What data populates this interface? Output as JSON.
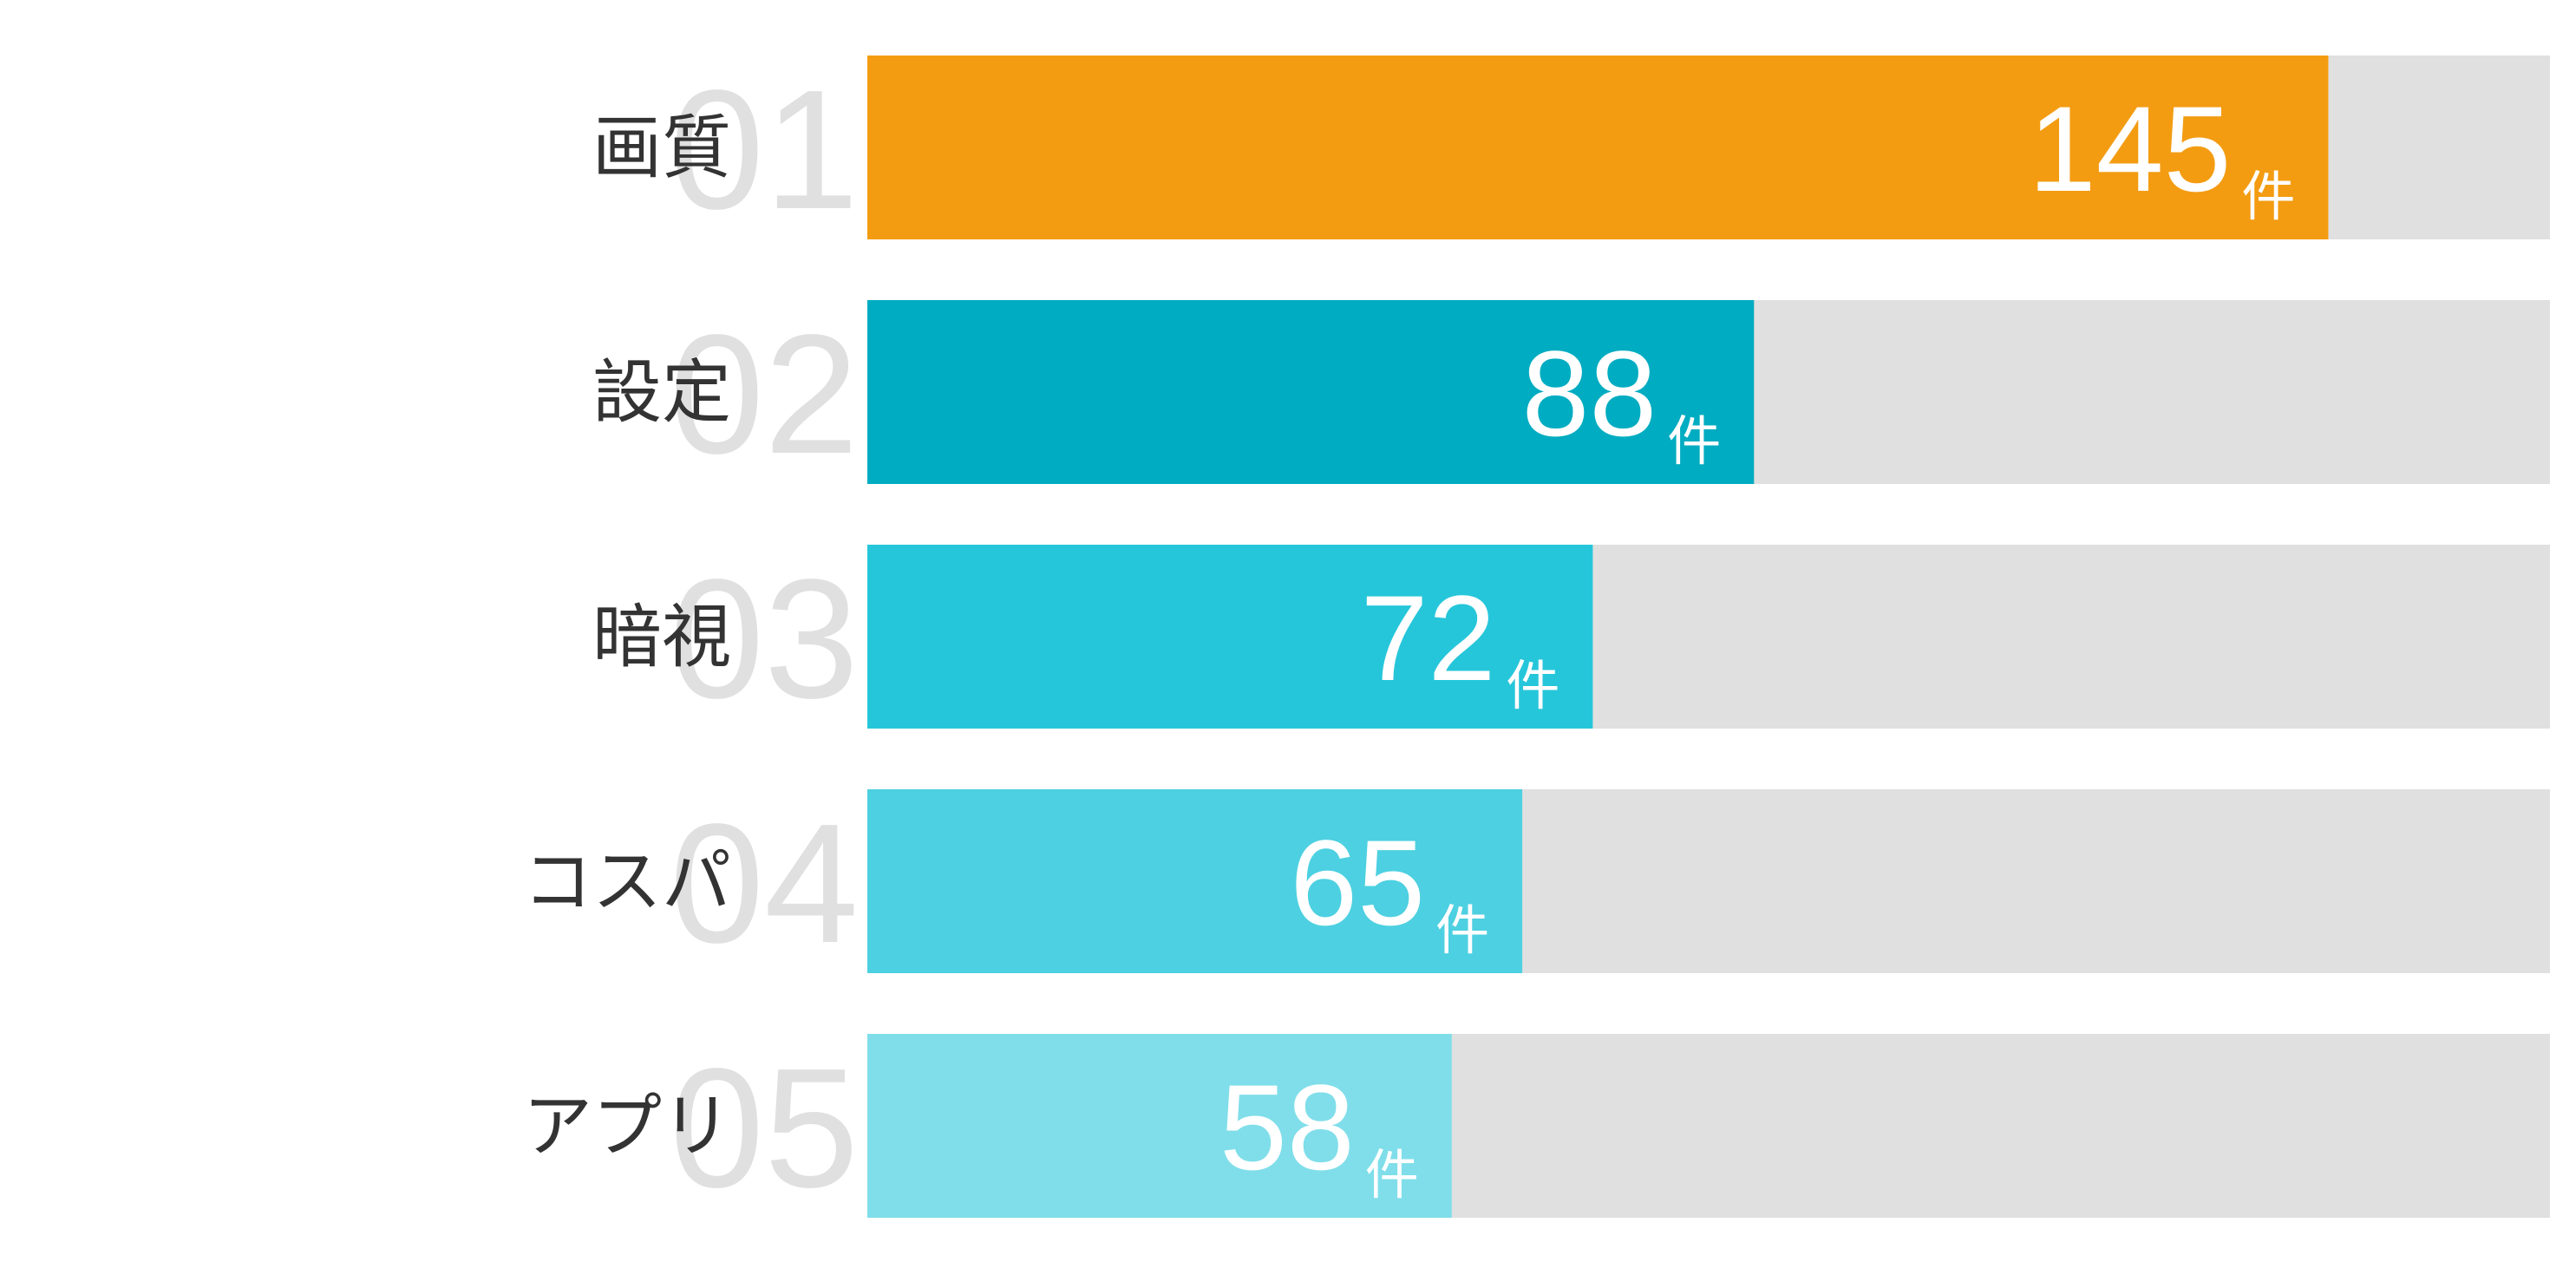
{
  "chart_data": {
    "type": "bar",
    "orientation": "horizontal",
    "categories": [
      "画質",
      "設定",
      "暗視",
      "コスパ",
      "アプリ"
    ],
    "ranks": [
      "01",
      "02",
      "03",
      "04",
      "05"
    ],
    "values": [
      145,
      88,
      72,
      65,
      58
    ],
    "unit": "件",
    "colors": [
      "#f39c12",
      "#00acc1",
      "#26c6da",
      "#4dd0e1",
      "#80deea"
    ],
    "track_color": "#e0e0e0",
    "xlim": [
      0,
      167
    ]
  }
}
